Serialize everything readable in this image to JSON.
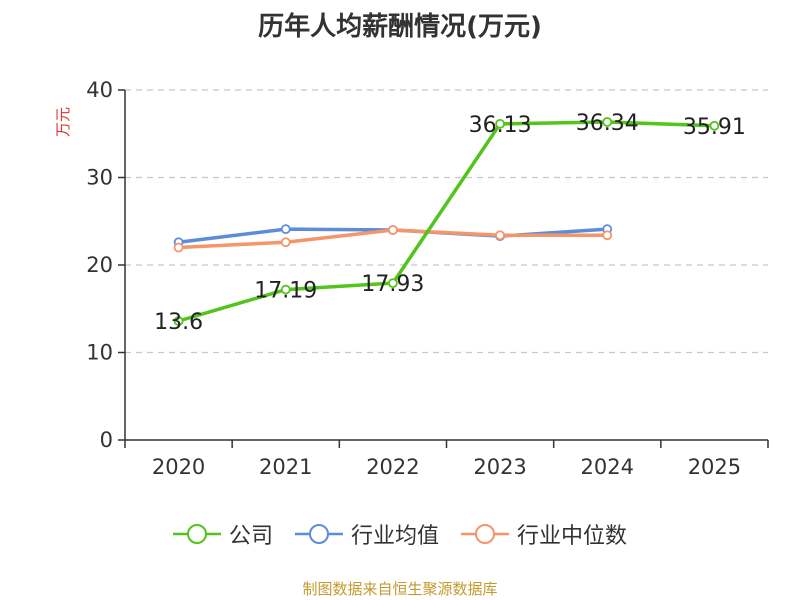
{
  "title": "历年人均薪酬情况(万元)",
  "source": "制图数据来自恒生聚源数据库",
  "chart_data": {
    "type": "line",
    "title": "历年人均薪酬情况(万元)",
    "ylabel": "万元",
    "xlabel": "",
    "categories": [
      "2020",
      "2021",
      "2022",
      "2023",
      "2024",
      "2025"
    ],
    "ylim": [
      0,
      40
    ],
    "yticks": [
      0,
      10,
      20,
      30,
      40
    ],
    "grid": true,
    "legend_position": "bottom",
    "series": [
      {
        "name": "公司",
        "color": "#52c41a",
        "values": [
          13.6,
          17.19,
          17.93,
          36.13,
          36.34,
          35.91
        ],
        "labels": [
          "13.6",
          "17.19",
          "17.93",
          "36.13",
          "36.34",
          "35.91"
        ]
      },
      {
        "name": "行业均值",
        "color": "#5b8ddb",
        "values": [
          22.6,
          24.1,
          24.0,
          23.3,
          24.1,
          null
        ]
      },
      {
        "name": "行业中位数",
        "color": "#f4956a",
        "values": [
          22.0,
          22.6,
          24.0,
          23.4,
          23.4,
          null
        ]
      }
    ]
  }
}
